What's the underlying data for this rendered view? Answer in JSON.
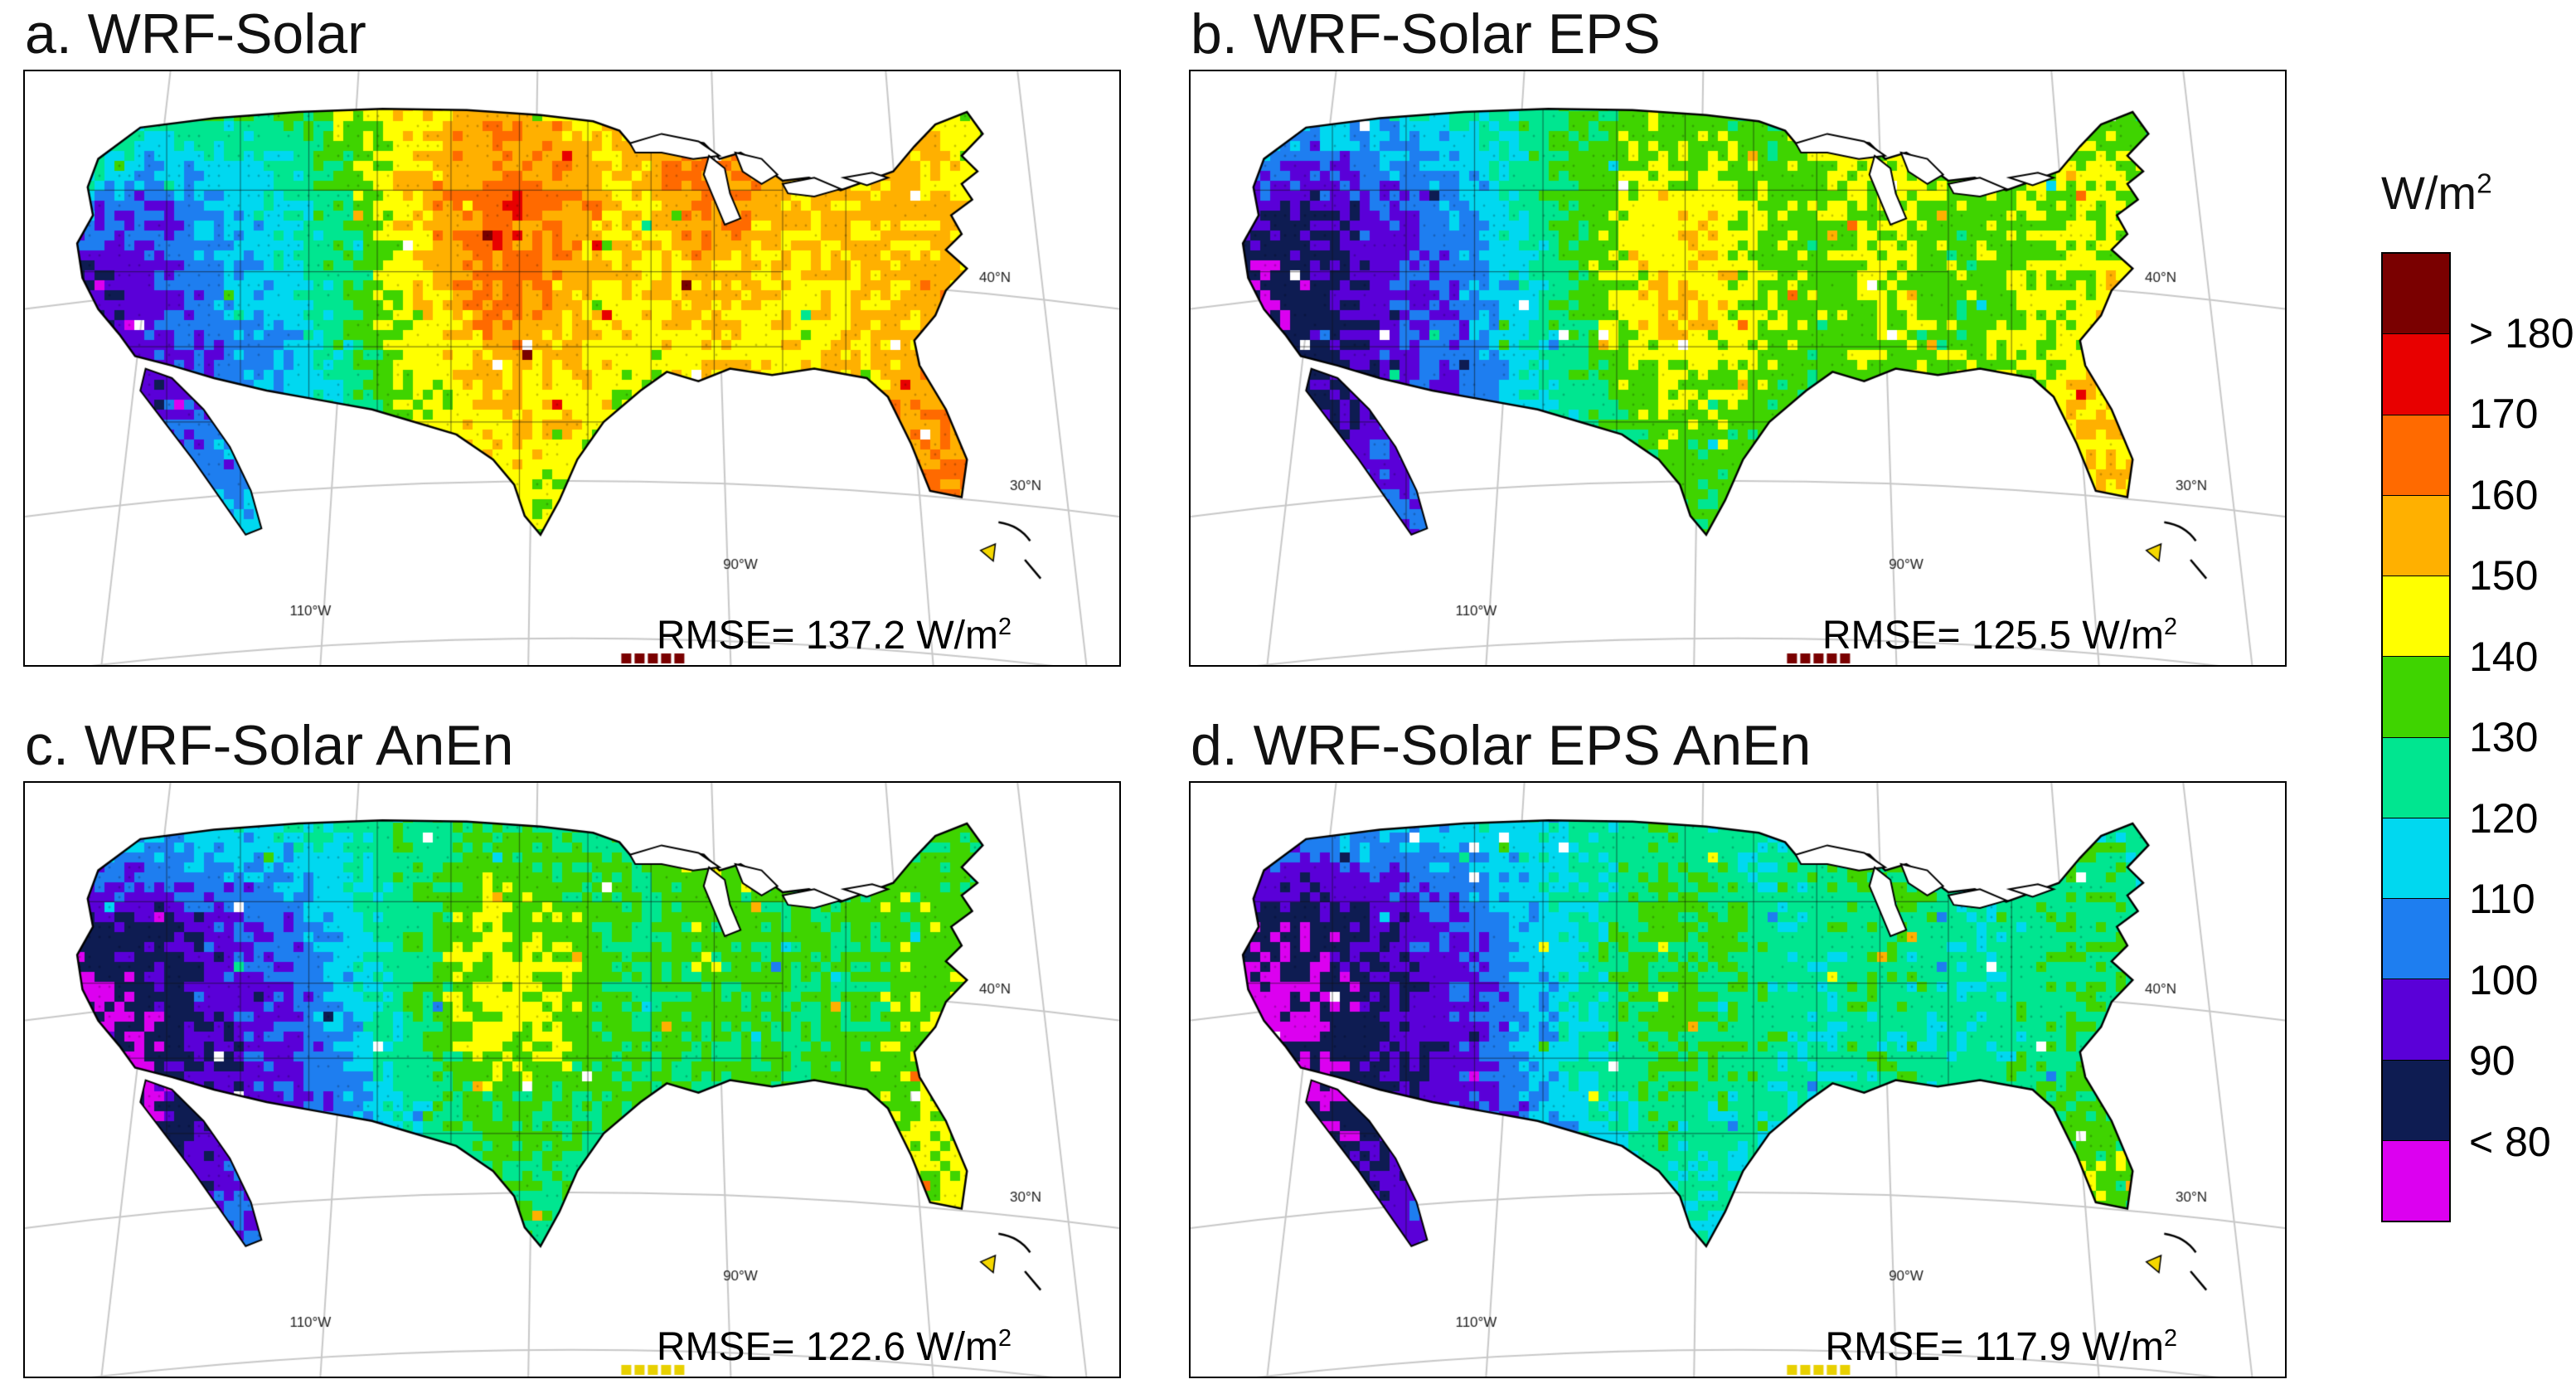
{
  "figure": {
    "background": "#ffffff"
  },
  "chart_data": {
    "type": "heatmap",
    "description": "RMSE maps over the continental United States for four WRF-Solar forecast configurations",
    "colorbar": {
      "title": "W/m",
      "title_sup": "2",
      "labels": [
        "> 180",
        "170",
        "160",
        "150",
        "140",
        "130",
        "120",
        "110",
        "100",
        "90",
        "< 80"
      ],
      "levels": [
        180,
        170,
        160,
        150,
        140,
        130,
        120,
        110,
        100,
        90,
        80
      ],
      "colors": [
        "#7a0000",
        "#e80000",
        "#ff6a00",
        "#ffb000",
        "#ffff00",
        "#3fd400",
        "#00e690",
        "#00d8f0",
        "#1e7ef0",
        "#5a00d8",
        "#0e1c52",
        "#dc00f0"
      ]
    },
    "graticule_labels": [
      {
        "text": "40°N",
        "x": 0.872,
        "y": 0.355
      },
      {
        "text": "30°N",
        "x": 0.9,
        "y": 0.705
      },
      {
        "text": "90°W",
        "x": 0.638,
        "y": 0.838
      },
      {
        "text": "110°W",
        "x": 0.242,
        "y": 0.916
      }
    ],
    "panels": [
      {
        "id": "a",
        "title": "a. WRF-Solar",
        "rmse_value": 137.2,
        "rmse_text": "RMSE= 137.2 W/m",
        "rmse_sup": "2",
        "edge_cells_color": "#7a0000",
        "grid": [
          [
            128,
            132,
            138,
            142,
            140,
            138,
            142,
            148,
            150,
            152,
            150,
            148,
            155,
            162,
            155,
            148,
            150,
            148,
            142,
            136,
            132,
            128
          ],
          [
            125,
            130,
            115,
            120,
            118,
            125,
            135,
            145,
            155,
            160,
            158,
            150,
            155,
            165,
            160,
            152,
            155,
            152,
            148,
            140,
            135,
            130
          ],
          [
            120,
            105,
            100,
            108,
            112,
            120,
            132,
            145,
            158,
            168,
            165,
            155,
            150,
            160,
            158,
            150,
            152,
            155,
            150,
            148,
            160,
            140
          ],
          [
            95,
            90,
            98,
            105,
            110,
            118,
            130,
            142,
            155,
            165,
            160,
            152,
            148,
            155,
            152,
            148,
            150,
            152,
            155,
            160,
            150,
            140
          ],
          [
            85,
            85,
            95,
            102,
            108,
            115,
            128,
            140,
            150,
            158,
            155,
            148,
            145,
            150,
            148,
            145,
            148,
            152,
            158,
            162,
            150,
            140
          ],
          [
            82,
            85,
            92,
            100,
            105,
            112,
            125,
            138,
            145,
            150,
            148,
            145,
            142,
            148,
            150,
            148,
            150,
            155,
            160,
            158,
            148,
            140
          ],
          [
            85,
            88,
            95,
            102,
            108,
            112,
            122,
            135,
            142,
            148,
            145,
            142,
            145,
            150,
            152,
            155,
            158,
            160,
            162,
            155,
            145,
            140
          ],
          [
            90,
            95,
            100,
            105,
            110,
            115,
            120,
            132,
            140,
            145,
            142,
            140,
            148,
            152,
            155,
            158,
            160,
            162,
            160,
            150,
            142,
            138
          ],
          [
            95,
            100,
            105,
            108,
            112,
            115,
            118,
            128,
            138,
            142,
            140,
            142,
            150,
            155,
            158,
            160,
            162,
            165,
            168,
            160,
            145,
            140
          ],
          [
            100,
            105,
            108,
            110,
            112,
            114,
            116,
            124,
            135,
            140,
            142,
            145,
            150,
            155,
            158,
            160,
            162,
            168,
            172,
            165,
            150,
            142
          ],
          [
            105,
            108,
            110,
            112,
            114,
            115,
            118,
            122,
            132,
            138,
            140,
            145,
            148,
            152,
            155,
            158,
            160,
            165,
            170,
            168,
            155,
            145
          ]
        ]
      },
      {
        "id": "b",
        "title": "b. WRF-Solar EPS",
        "rmse_value": 125.5,
        "rmse_text": "RMSE= 125.5 W/m",
        "rmse_sup": "2",
        "edge_cells_color": "#7a0000",
        "grid": [
          [
            120,
            125,
            128,
            125,
            122,
            122,
            125,
            128,
            130,
            132,
            130,
            128,
            132,
            140,
            135,
            130,
            135,
            132,
            130,
            128,
            125,
            122
          ],
          [
            115,
            110,
            105,
            108,
            110,
            115,
            122,
            130,
            135,
            140,
            138,
            132,
            138,
            145,
            142,
            135,
            138,
            140,
            138,
            132,
            128,
            125
          ],
          [
            100,
            92,
            90,
            95,
            100,
            108,
            118,
            130,
            140,
            148,
            145,
            138,
            135,
            142,
            140,
            135,
            138,
            142,
            140,
            138,
            145,
            130
          ],
          [
            85,
            80,
            85,
            92,
            98,
            105,
            115,
            128,
            140,
            150,
            148,
            140,
            135,
            140,
            138,
            135,
            138,
            142,
            145,
            148,
            140,
            130
          ],
          [
            75,
            78,
            85,
            92,
            98,
            104,
            115,
            126,
            138,
            148,
            145,
            140,
            135,
            138,
            136,
            134,
            138,
            142,
            148,
            150,
            140,
            130
          ],
          [
            75,
            78,
            85,
            90,
            96,
            102,
            112,
            122,
            132,
            140,
            138,
            135,
            132,
            138,
            140,
            138,
            140,
            145,
            150,
            148,
            138,
            130
          ],
          [
            78,
            82,
            88,
            95,
            100,
            105,
            112,
            122,
            130,
            136,
            134,
            132,
            135,
            140,
            142,
            145,
            148,
            150,
            152,
            145,
            136,
            130
          ],
          [
            85,
            88,
            92,
            98,
            102,
            106,
            112,
            120,
            128,
            132,
            130,
            132,
            138,
            142,
            145,
            148,
            150,
            152,
            150,
            140,
            132,
            128
          ],
          [
            90,
            94,
            98,
            102,
            105,
            108,
            112,
            118,
            126,
            130,
            130,
            132,
            140,
            145,
            148,
            150,
            152,
            155,
            158,
            150,
            136,
            130
          ],
          [
            95,
            98,
            102,
            105,
            108,
            110,
            112,
            116,
            124,
            128,
            130,
            134,
            140,
            145,
            148,
            150,
            152,
            158,
            162,
            155,
            140,
            132
          ],
          [
            98,
            102,
            105,
            108,
            110,
            112,
            114,
            118,
            122,
            128,
            130,
            134,
            138,
            142,
            145,
            148,
            152,
            155,
            160,
            158,
            145,
            135
          ]
        ]
      },
      {
        "id": "c",
        "title": "c. WRF-Solar AnEn",
        "rmse_value": 122.6,
        "rmse_text": "RMSE= 122.6 W/m",
        "rmse_sup": "2",
        "edge_cells_color": "#e8d000",
        "grid": [
          [
            118,
            122,
            125,
            122,
            120,
            120,
            122,
            125,
            128,
            130,
            128,
            126,
            130,
            135,
            132,
            128,
            132,
            130,
            128,
            125,
            122,
            120
          ],
          [
            112,
            108,
            105,
            108,
            110,
            114,
            120,
            126,
            130,
            135,
            132,
            128,
            132,
            138,
            136,
            130,
            132,
            134,
            132,
            128,
            124,
            120
          ],
          [
            98,
            90,
            88,
            94,
            100,
            106,
            115,
            125,
            134,
            142,
            138,
            132,
            130,
            136,
            134,
            130,
            132,
            135,
            134,
            130,
            138,
            125
          ],
          [
            82,
            78,
            84,
            90,
            96,
            102,
            112,
            124,
            136,
            145,
            142,
            134,
            130,
            135,
            133,
            130,
            132,
            135,
            138,
            140,
            132,
            125
          ],
          [
            75,
            76,
            82,
            90,
            95,
            100,
            110,
            122,
            133,
            142,
            140,
            135,
            130,
            133,
            132,
            130,
            132,
            136,
            140,
            142,
            132,
            125
          ],
          [
            74,
            76,
            82,
            88,
            94,
            100,
            108,
            118,
            128,
            135,
            133,
            130,
            128,
            133,
            135,
            133,
            135,
            138,
            142,
            140,
            130,
            124
          ],
          [
            78,
            80,
            86,
            92,
            98,
            102,
            108,
            118,
            126,
            131,
            130,
            128,
            130,
            135,
            137,
            139,
            141,
            143,
            144,
            138,
            128,
            122
          ],
          [
            84,
            86,
            90,
            95,
            100,
            104,
            110,
            117,
            124,
            128,
            127,
            128,
            133,
            137,
            140,
            142,
            144,
            146,
            144,
            134,
            126,
            120
          ],
          [
            88,
            92,
            96,
            100,
            103,
            106,
            110,
            115,
            122,
            126,
            126,
            128,
            135,
            140,
            143,
            145,
            147,
            149,
            150,
            142,
            128,
            122
          ],
          [
            92,
            96,
            100,
            103,
            106,
            108,
            110,
            114,
            120,
            125,
            126,
            130,
            136,
            140,
            143,
            146,
            148,
            152,
            154,
            146,
            132,
            124
          ],
          [
            96,
            100,
            103,
            106,
            108,
            110,
            112,
            115,
            119,
            124,
            126,
            130,
            134,
            138,
            141,
            144,
            148,
            150,
            154,
            150,
            136,
            126
          ]
        ]
      },
      {
        "id": "d",
        "title": "d. WRF-Solar EPS AnEn",
        "rmse_value": 117.9,
        "rmse_text": "RMSE= 117.9 W/m",
        "rmse_sup": "2",
        "edge_cells_color": "#e8d000",
        "grid": [
          [
            112,
            116,
            120,
            118,
            116,
            116,
            118,
            120,
            122,
            125,
            123,
            121,
            125,
            129,
            127,
            123,
            127,
            125,
            123,
            120,
            118,
            116
          ],
          [
            106,
            102,
            100,
            104,
            106,
            110,
            115,
            120,
            124,
            128,
            126,
            122,
            126,
            132,
            130,
            124,
            126,
            128,
            126,
            122,
            118,
            115
          ],
          [
            92,
            85,
            84,
            90,
            95,
            102,
            110,
            118,
            126,
            133,
            130,
            124,
            123,
            129,
            127,
            123,
            125,
            128,
            127,
            124,
            132,
            120
          ],
          [
            78,
            74,
            80,
            86,
            92,
            98,
            107,
            117,
            127,
            135,
            132,
            126,
            122,
            127,
            125,
            122,
            124,
            127,
            130,
            133,
            126,
            119
          ],
          [
            72,
            73,
            79,
            86,
            91,
            96,
            105,
            115,
            125,
            133,
            131,
            127,
            122,
            125,
            124,
            122,
            124,
            128,
            132,
            135,
            126,
            119
          ],
          [
            72,
            74,
            79,
            85,
            90,
            96,
            103,
            112,
            120,
            127,
            125,
            122,
            120,
            125,
            127,
            125,
            127,
            130,
            134,
            133,
            124,
            118
          ],
          [
            75,
            78,
            83,
            89,
            94,
            98,
            104,
            112,
            119,
            124,
            122,
            120,
            122,
            127,
            129,
            131,
            133,
            135,
            136,
            131,
            122,
            116
          ],
          [
            80,
            83,
            87,
            92,
            96,
            100,
            106,
            112,
            118,
            121,
            120,
            121,
            126,
            130,
            132,
            134,
            136,
            138,
            136,
            127,
            120,
            114
          ],
          [
            85,
            88,
            92,
            96,
            99,
            102,
            106,
            110,
            116,
            120,
            120,
            122,
            128,
            133,
            136,
            138,
            140,
            142,
            143,
            135,
            122,
            116
          ],
          [
            88,
            92,
            96,
            99,
            102,
            104,
            106,
            109,
            114,
            119,
            120,
            124,
            130,
            134,
            137,
            139,
            141,
            145,
            147,
            139,
            126,
            118
          ],
          [
            92,
            96,
            99,
            102,
            104,
            106,
            108,
            110,
            113,
            118,
            120,
            124,
            128,
            132,
            135,
            137,
            141,
            143,
            147,
            143,
            130,
            120
          ]
        ]
      }
    ]
  }
}
